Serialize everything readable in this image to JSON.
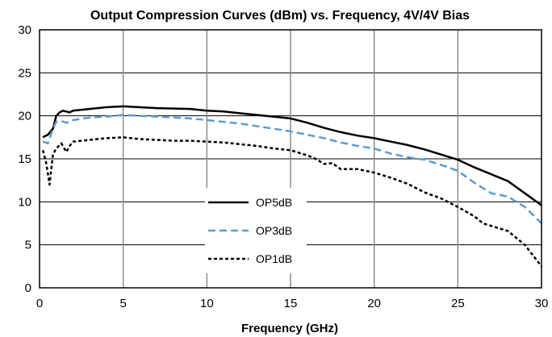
{
  "chart_data": {
    "type": "line",
    "title": "Output Compression Curves (dBm) vs. Frequency, 4V/4V Bias",
    "xlabel": "Frequency (GHz)",
    "ylabel": "",
    "xlim": [
      0,
      30
    ],
    "ylim": [
      0,
      30
    ],
    "x_ticks": [
      "0",
      "5",
      "10",
      "15",
      "20",
      "25",
      "30"
    ],
    "y_ticks": [
      "0",
      "5",
      "10",
      "15",
      "20",
      "25",
      "30"
    ],
    "grid": "on",
    "legend_position": "center-lower",
    "series": [
      {
        "name": "OP5dB",
        "color": "#000000",
        "dash": "solid",
        "x": [
          0.2,
          0.5,
          0.8,
          1.0,
          1.2,
          1.4,
          1.6,
          1.8,
          2,
          3,
          4,
          5,
          6,
          7,
          8,
          9,
          10,
          11,
          12,
          13,
          14,
          15,
          16,
          17,
          18,
          19,
          20,
          21,
          22,
          23,
          24,
          25,
          26,
          27,
          28,
          29,
          30
        ],
        "y": [
          17.5,
          17.8,
          18.5,
          20.0,
          20.4,
          20.6,
          20.5,
          20.4,
          20.6,
          20.8,
          21.0,
          21.1,
          21.0,
          20.9,
          20.85,
          20.8,
          20.6,
          20.5,
          20.3,
          20.1,
          19.9,
          19.7,
          19.2,
          18.6,
          18.1,
          17.7,
          17.4,
          17.0,
          16.6,
          16.1,
          15.5,
          14.9,
          14.0,
          13.2,
          12.4,
          11.0,
          9.6
        ]
      },
      {
        "name": "OP3dB",
        "color": "#5b9bd5",
        "dash": "dashed",
        "x": [
          0.2,
          0.5,
          0.8,
          1.0,
          1.3,
          1.6,
          2,
          3,
          4,
          5,
          6,
          7,
          8,
          9,
          10,
          11,
          12,
          13,
          14,
          15,
          16,
          17,
          18,
          19,
          20,
          21,
          22,
          23,
          24,
          25,
          26,
          27,
          28,
          29,
          30
        ],
        "y": [
          17.0,
          16.8,
          18.5,
          19.3,
          19.4,
          19.2,
          19.5,
          19.8,
          19.9,
          20.1,
          20.0,
          19.9,
          19.8,
          19.7,
          19.5,
          19.3,
          19.1,
          18.8,
          18.5,
          18.2,
          17.8,
          17.4,
          16.9,
          16.5,
          16.2,
          15.6,
          15.2,
          14.9,
          14.3,
          13.6,
          12.2,
          11.0,
          10.6,
          9.4,
          7.5
        ]
      },
      {
        "name": "OP1dB",
        "color": "#000000",
        "dash": "dotted",
        "x": [
          0.2,
          0.4,
          0.6,
          0.8,
          1.0,
          1.3,
          1.6,
          1.8,
          2,
          3,
          4,
          5,
          6,
          7,
          8,
          9,
          10,
          11,
          12,
          13,
          14,
          15,
          16,
          16.5,
          17,
          17.5,
          18,
          19,
          20,
          21,
          22,
          23,
          24,
          25,
          26,
          26.5,
          27,
          28,
          29,
          30
        ],
        "y": [
          16.0,
          14.5,
          12.0,
          15.5,
          16.2,
          16.8,
          15.8,
          16.5,
          17.0,
          17.2,
          17.4,
          17.5,
          17.3,
          17.2,
          17.1,
          17.1,
          17.0,
          16.9,
          16.7,
          16.5,
          16.2,
          16.0,
          15.4,
          15.0,
          14.4,
          14.5,
          13.8,
          13.8,
          13.4,
          12.8,
          12.1,
          11.1,
          10.4,
          9.4,
          8.3,
          7.5,
          7.2,
          6.6,
          5.0,
          2.5
        ]
      }
    ]
  }
}
